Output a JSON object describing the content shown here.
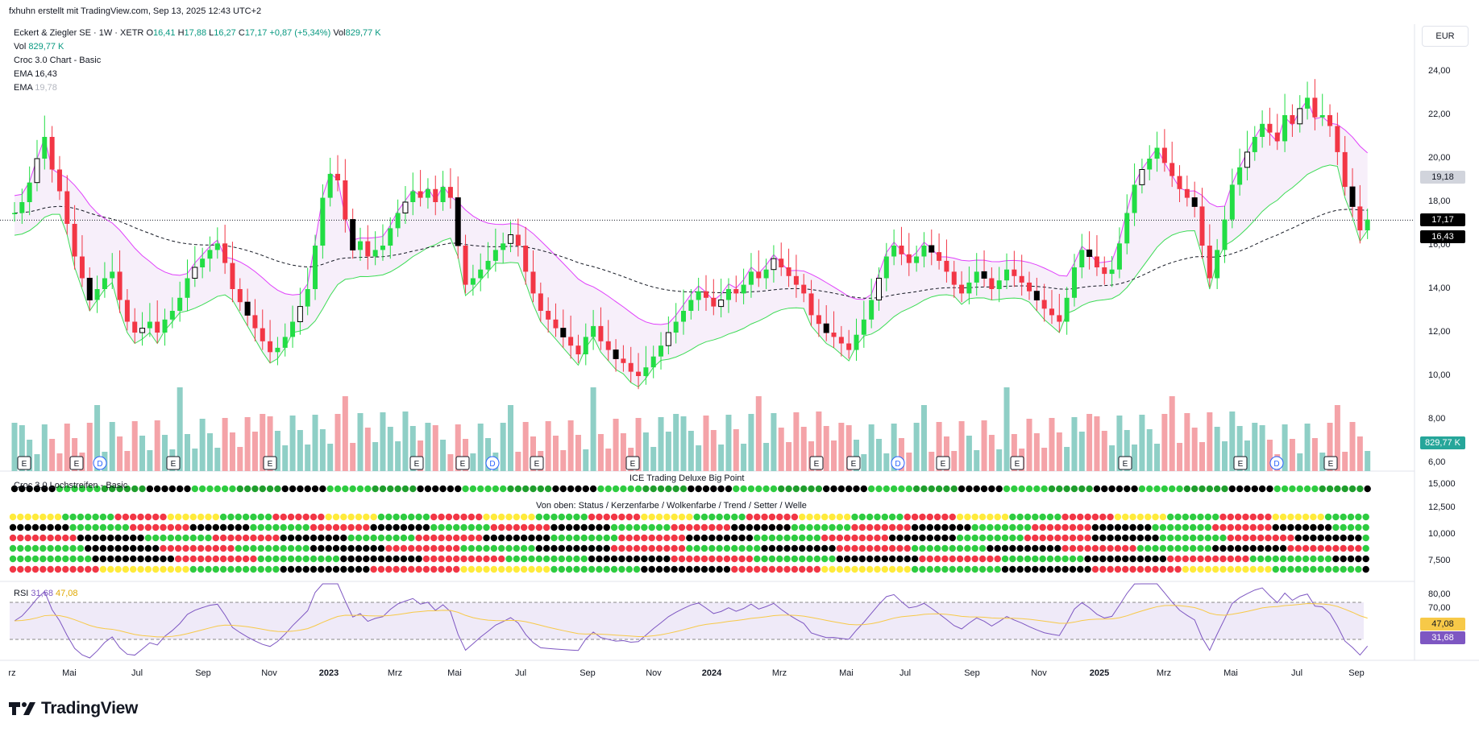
{
  "topline": "fxhuhn erstellt mit TradingView.com, Sep 13, 2025 12:43 UTC+2",
  "currency_button": "EUR",
  "legend": {
    "symbol": "Eckert & Ziegler SE · 1W · XETR",
    "o_label": "O",
    "o": "16,41",
    "h_label": "H",
    "h": "17,88",
    "l_label": "L",
    "l": "16,27",
    "c_label": "C",
    "c": "17,17",
    "chg": "+0,87 (+5,34%)",
    "vol_label": "Vol",
    "vol": "829,77 K",
    "vol2_label": "Vol",
    "vol2": "829,77 K",
    "croc": "Croc 3.0 Chart - Basic",
    "ema1_label": "EMA",
    "ema1": "16,43",
    "ema2_label": "EMA",
    "ema2": "19,78"
  },
  "panes": {
    "lochstreifen": "Croc 3.0 Lochstreifen - Basic",
    "ice": "ICE Trading Deluxe Big Point",
    "von_oben": "Von oben: Status / Kerzenfarbe / Wolkenfarbe / Trend / Setter / Welle",
    "rsi_label": "RSI",
    "rsi1": "31,68",
    "rsi2": "47,08"
  },
  "price_axis": [
    "24,00",
    "22,00",
    "20,00",
    "18,00",
    "16,00",
    "14,00",
    "12,00",
    "10,00",
    "8,00",
    "6,00"
  ],
  "ice_axis": [
    "15,000",
    "12,500",
    "10,000",
    "7,500"
  ],
  "rsi_axis": [
    "80,00",
    "70,00"
  ],
  "price_tags": {
    "t1": "19,18",
    "t2": "17,17",
    "t3": "16,43",
    "vol": "829,77 K",
    "rsi_a": "47,08",
    "rsi_b": "31,68"
  },
  "time_axis": [
    {
      "t": "rz",
      "bold": false
    },
    {
      "t": "Mai",
      "bold": false
    },
    {
      "t": "Jul",
      "bold": false
    },
    {
      "t": "Sep",
      "bold": false
    },
    {
      "t": "Nov",
      "bold": false
    },
    {
      "t": "2023",
      "bold": true
    },
    {
      "t": "Mrz",
      "bold": false
    },
    {
      "t": "Mai",
      "bold": false
    },
    {
      "t": "Jul",
      "bold": false
    },
    {
      "t": "Sep",
      "bold": false
    },
    {
      "t": "Nov",
      "bold": false
    },
    {
      "t": "2024",
      "bold": true
    },
    {
      "t": "Mrz",
      "bold": false
    },
    {
      "t": "Mai",
      "bold": false
    },
    {
      "t": "Jul",
      "bold": false
    },
    {
      "t": "Sep",
      "bold": false
    },
    {
      "t": "Nov",
      "bold": false
    },
    {
      "t": "2025",
      "bold": true
    },
    {
      "t": "Mrz",
      "bold": false
    },
    {
      "t": "Mai",
      "bold": false
    },
    {
      "t": "Jul",
      "bold": false
    },
    {
      "t": "Sep",
      "bold": false
    }
  ],
  "logo": "TradingView",
  "colors": {
    "up": "#22dd44",
    "down": "#f23645",
    "cloud_up": "#e8f8ec",
    "cloud_dn": "#fbe1f6",
    "ema_fast": "#000000",
    "rsi": "#7e57c2",
    "rsi_ma": "#f7c948"
  },
  "chart_data": {
    "type": "candlestick",
    "interval": "1W",
    "ylim": [
      5.5,
      25
    ],
    "close_approx": [
      17.5,
      18.0,
      18.9,
      20.0,
      21.0,
      19.5,
      18.5,
      17.0,
      15.5,
      14.5,
      13.5,
      14.0,
      14.5,
      14.8,
      13.5,
      12.5,
      12.0,
      12.2,
      12.5,
      12.0,
      12.6,
      13.0,
      13.6,
      14.5,
      15.0,
      15.4,
      15.8,
      16.1,
      15.2,
      14.0,
      13.4,
      12.8,
      12.2,
      11.6,
      11.1,
      11.3,
      11.8,
      12.5,
      13.2,
      14.0,
      16.0,
      18.2,
      19.3,
      19.0,
      17.2,
      15.8,
      16.2,
      15.5,
      15.8,
      16.0,
      16.8,
      17.5,
      18.0,
      18.5,
      18.2,
      18.6,
      18.0,
      18.7,
      18.2,
      16.0,
      14.2,
      14.5,
      14.9,
      15.3,
      15.8,
      16.1,
      16.5,
      16.0,
      14.8,
      13.8,
      13.0,
      12.6,
      12.2,
      11.8,
      11.4,
      11.0,
      11.8,
      12.3,
      11.6,
      11.2,
      10.8,
      10.6,
      10.2,
      10.0,
      10.4,
      10.9,
      11.4,
      12.0,
      12.5,
      13.0,
      13.5,
      13.9,
      13.6,
      13.2,
      13.5,
      14.0,
      13.8,
      14.2,
      14.8,
      14.5,
      14.9,
      15.4,
      15.0,
      14.6,
      14.2,
      13.8,
      12.8,
      12.4,
      12.0,
      11.8,
      11.5,
      11.2,
      11.9,
      12.6,
      13.5,
      14.5,
      15.5,
      16.0,
      15.6,
      15.2,
      15.5,
      16.0,
      15.7,
      15.3,
      14.8,
      14.2,
      13.8,
      14.3,
      14.8,
      14.5,
      14.0,
      14.4,
      14.9,
      14.6,
      14.3,
      13.9,
      13.5,
      13.1,
      12.8,
      12.5,
      13.6,
      15.0,
      15.8,
      15.5,
      15.0,
      14.7,
      14.9,
      16.1,
      17.5,
      18.8,
      19.5,
      20.0,
      20.5,
      19.8,
      19.2,
      18.6,
      18.2,
      17.8,
      16.0,
      14.5,
      15.8,
      17.2,
      18.8,
      19.6,
      20.3,
      21.0,
      21.6,
      21.2,
      20.8,
      22.0,
      21.6,
      22.3,
      22.8,
      21.9,
      22.0,
      21.5,
      20.3,
      18.7,
      17.8,
      16.7,
      17.2
    ]
  }
}
